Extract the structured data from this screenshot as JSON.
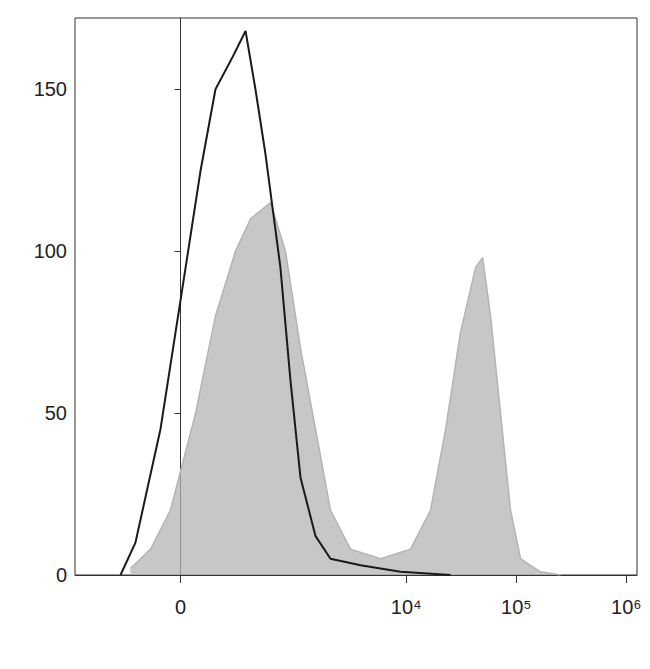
{
  "chart_data": {
    "type": "line",
    "xlim": [
      -800,
      1250000
    ],
    "xticks": [
      0,
      {
        "value": 10000,
        "label": "10⁴"
      },
      {
        "value": 100000,
        "label": "10⁵"
      },
      {
        "value": 1000000,
        "label": "10⁶"
      }
    ],
    "ylim": [
      0,
      172
    ],
    "yticks": [
      0,
      50,
      100,
      150
    ],
    "grid": false,
    "series": [
      {
        "type": "area",
        "color": "#b4b4b4",
        "x": [
          -223,
          -119,
          -38,
          57,
          142,
          253,
          365,
          571,
          790,
          1088,
          1495,
          2047,
          3115,
          5838,
          10947,
          16625,
          22784,
          31150,
          42720,
          49395,
          58384,
          71912,
          88644,
          109470,
          165896,
          252760
        ],
        "values": [
          2,
          8,
          20,
          50,
          80,
          100,
          110,
          115,
          100,
          70,
          45,
          20,
          8,
          5,
          8,
          20,
          45,
          75,
          95,
          98,
          80,
          50,
          20,
          5,
          1,
          0
        ]
      },
      {
        "type": "line",
        "color": "#1a1a1a",
        "x": [
          -287,
          -194,
          -77,
          19,
          77,
          142,
          235,
          324,
          408,
          511,
          708,
          879,
          1088,
          1495,
          2047,
          3845,
          8882,
          25276
        ],
        "values": [
          0,
          10,
          45,
          95,
          125,
          150,
          160,
          168,
          150,
          130,
          95,
          60,
          30,
          12,
          5,
          3,
          1,
          0
        ]
      }
    ]
  }
}
